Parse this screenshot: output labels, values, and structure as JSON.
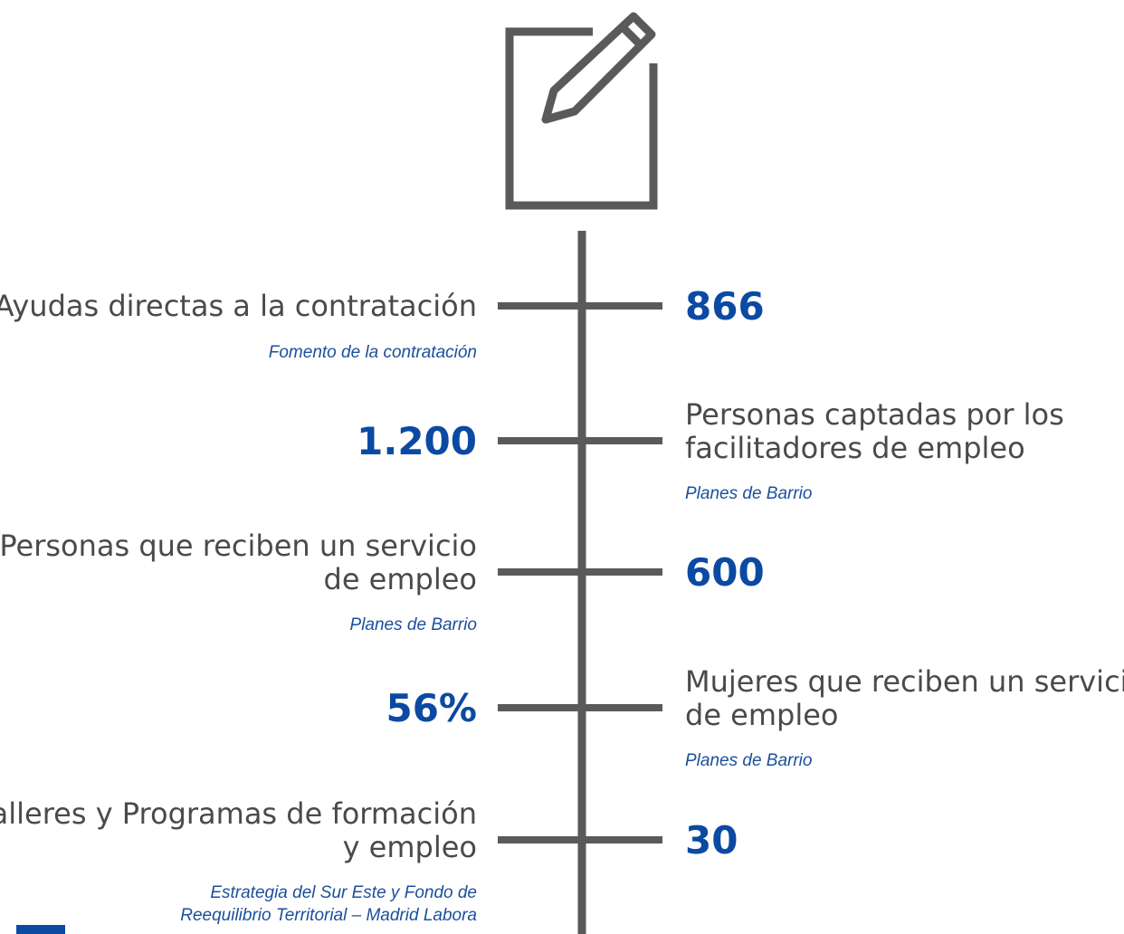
{
  "items": [
    {
      "side": "left",
      "label": [
        "Ayudas directas a la contratación"
      ],
      "value": "866",
      "source": [
        "Fomento de la contratación"
      ]
    },
    {
      "side": "right",
      "label": [
        "Personas captadas por los",
        "facilitadores de empleo"
      ],
      "value": "1.200",
      "source": [
        "Planes de Barrio"
      ]
    },
    {
      "side": "left",
      "label": [
        "Personas que reciben un servicio",
        "de empleo"
      ],
      "value": "600",
      "source": [
        "Planes de Barrio"
      ]
    },
    {
      "side": "right",
      "label": [
        "Mujeres que reciben un servicio",
        "de empleo"
      ],
      "value": "56%",
      "source": [
        "Planes de Barrio"
      ]
    },
    {
      "side": "left",
      "label": [
        "Talleres y Programas de formación",
        "y empleo"
      ],
      "value": "30",
      "source": [
        "Estrategia del Sur Este y Fondo de",
        "Reequilibrio Territorial – Madrid Labora"
      ]
    }
  ]
}
